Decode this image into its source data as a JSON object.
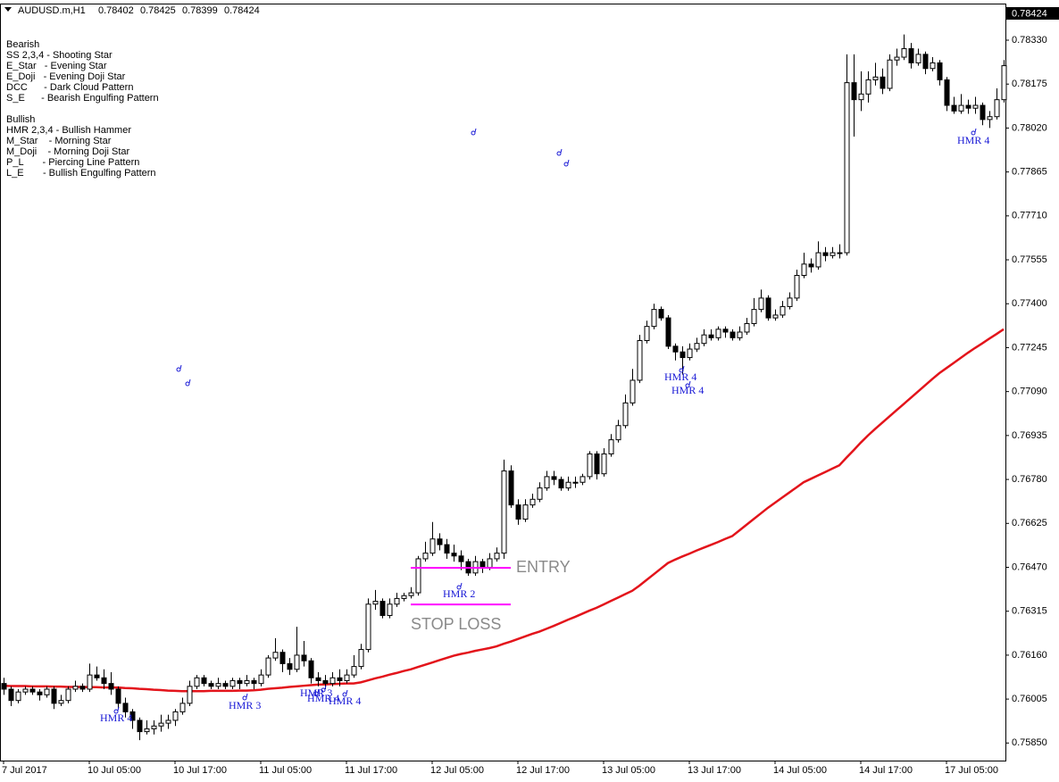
{
  "chart_data": {
    "type": "candlestick",
    "header": {
      "symbol": "AUDUSD.m,H1",
      "open": 0.78402,
      "high": 0.78425,
      "low": 0.78399,
      "close": 0.78424
    },
    "notes": [
      "Bearish",
      "SS 2,3,4 - Shooting Star",
      "E_Star   - Evening Star",
      "E_Doji   - Evening Doji Star",
      "DCC      - Dark Cloud Pattern",
      "S_E      - Bearish Engulfing Pattern",
      "Bullish",
      "HMR 2,3,4 - Bullish Hammer",
      "M_Star    - Morning Star",
      "M_Doji    - Morning Doji Star",
      "P_L       - Piercing Line Pattern",
      "L_E       - Bullish Engulfing Pattern"
    ],
    "annotations": [
      "HMR 4",
      "HMR 3",
      "HMR 3",
      "HMR 4",
      "HMR 4",
      "HMR 2",
      "HMR 4",
      "HMR 4",
      "HMR 4"
    ],
    "levels": [
      {
        "label": "ENTRY",
        "value": 0.76468,
        "color": "#ff00ff"
      },
      {
        "label": "STOP LOSS",
        "value": 0.76339,
        "color": "#ff00ff"
      }
    ],
    "up_color": "#ffffff",
    "down_color": "#000000",
    "categories": [
      "7 Jul 2017",
      null,
      null,
      null,
      null,
      null,
      null,
      null,
      null,
      null,
      null,
      null,
      "10 Jul 05:00",
      null,
      null,
      null,
      null,
      null,
      null,
      null,
      null,
      null,
      null,
      null,
      "10 Jul 17:00",
      null,
      null,
      null,
      null,
      null,
      null,
      null,
      null,
      null,
      null,
      null,
      "11 Jul 05:00",
      null,
      null,
      null,
      null,
      null,
      null,
      null,
      null,
      null,
      null,
      null,
      "11 Jul 17:00",
      null,
      null,
      null,
      null,
      null,
      null,
      null,
      null,
      null,
      null,
      null,
      "12 Jul 05:00",
      null,
      null,
      null,
      null,
      null,
      null,
      null,
      null,
      null,
      null,
      null,
      "12 Jul 17:00",
      null,
      null,
      null,
      null,
      null,
      null,
      null,
      null,
      null,
      null,
      null,
      "13 Jul 05:00",
      null,
      null,
      null,
      null,
      null,
      null,
      null,
      null,
      null,
      null,
      null,
      "13 Jul 17:00",
      null,
      null,
      null,
      null,
      null,
      null,
      null,
      null,
      null,
      null,
      null,
      "14 Jul 05:00",
      null,
      null,
      null,
      null,
      null,
      null,
      null,
      null,
      null,
      null,
      null,
      "14 Jul 17:00",
      null,
      null,
      null,
      null,
      null,
      null,
      null,
      null,
      null,
      null,
      null,
      "17 Jul 05:00",
      null,
      null,
      null,
      null,
      null,
      null,
      null,
      null
    ],
    "open": [
      0.7606,
      0.7604,
      0.76,
      0.7603,
      0.7604,
      0.7603,
      0.7602,
      0.7604,
      0.7599,
      0.76,
      0.7604,
      0.7605,
      0.7604,
      0.7609,
      0.7608,
      0.7606,
      0.7604,
      0.7599,
      0.7596,
      0.7593,
      0.7589,
      0.759,
      0.7591,
      0.7592,
      0.7593,
      0.7596,
      0.7599,
      0.7605,
      0.7608,
      0.7606,
      0.7605,
      0.7606,
      0.7605,
      0.7607,
      0.7606,
      0.7607,
      0.7606,
      0.7609,
      0.7615,
      0.7617,
      0.7613,
      0.7611,
      0.7616,
      0.7614,
      0.7608,
      0.7607,
      0.7606,
      0.7608,
      0.7607,
      0.7609,
      0.7612,
      0.7618,
      0.7634,
      0.7635,
      0.763,
      0.7634,
      0.7636,
      0.7637,
      0.7638,
      0.765,
      0.7652,
      0.7657,
      0.7655,
      0.7652,
      0.7651,
      0.7649,
      0.7645,
      0.7649,
      0.7647,
      0.765,
      0.7652,
      0.7681,
      0.7669,
      0.7664,
      0.7669,
      0.7671,
      0.7675,
      0.7679,
      0.7678,
      0.7675,
      0.7677,
      0.7677,
      0.7679,
      0.7687,
      0.768,
      0.7687,
      0.7692,
      0.7697,
      0.7705,
      0.7713,
      0.7727,
      0.7732,
      0.7738,
      0.7735,
      0.7725,
      0.7723,
      0.7721,
      0.7724,
      0.7726,
      0.7729,
      0.7728,
      0.7731,
      0.773,
      0.7728,
      0.773,
      0.7733,
      0.7738,
      0.7742,
      0.7735,
      0.7736,
      0.7739,
      0.7742,
      0.775,
      0.7754,
      0.7753,
      0.7758,
      0.7757,
      0.7758,
      0.7758,
      0.7818,
      0.7812,
      0.7814,
      0.7819,
      0.782,
      0.7816,
      0.7826,
      0.7827,
      0.783,
      0.7825,
      0.7828,
      0.7823,
      0.7825,
      0.7819,
      0.781,
      0.7808,
      0.781,
      0.7809,
      0.781,
      0.7805,
      0.7806,
      0.7812
    ],
    "high": [
      0.7608,
      0.7605,
      0.7604,
      0.7605,
      0.7605,
      0.7604,
      0.7605,
      0.7605,
      0.7602,
      0.7605,
      0.7607,
      0.7606,
      0.7613,
      0.7612,
      0.7611,
      0.761,
      0.7605,
      0.7601,
      0.7597,
      0.7594,
      0.7593,
      0.7593,
      0.7595,
      0.7595,
      0.7597,
      0.7601,
      0.7607,
      0.7609,
      0.7609,
      0.7607,
      0.7608,
      0.7607,
      0.7608,
      0.7608,
      0.7609,
      0.7608,
      0.7611,
      0.7616,
      0.7622,
      0.7618,
      0.7615,
      0.7626,
      0.7621,
      0.7615,
      0.761,
      0.7609,
      0.761,
      0.7611,
      0.7611,
      0.7616,
      0.762,
      0.7636,
      0.7639,
      0.7636,
      0.7636,
      0.7638,
      0.7638,
      0.764,
      0.7651,
      0.7656,
      0.7663,
      0.7659,
      0.7657,
      0.7655,
      0.7653,
      0.765,
      0.7651,
      0.765,
      0.7652,
      0.7654,
      0.7685,
      0.7683,
      0.7671,
      0.7671,
      0.7673,
      0.7677,
      0.7681,
      0.7681,
      0.7679,
      0.7679,
      0.7679,
      0.768,
      0.7688,
      0.7688,
      0.7689,
      0.7694,
      0.7699,
      0.7708,
      0.7717,
      0.7729,
      0.7734,
      0.774,
      0.7739,
      0.7736,
      0.7726,
      0.7725,
      0.7726,
      0.7728,
      0.7731,
      0.7731,
      0.7732,
      0.7732,
      0.7731,
      0.7732,
      0.7735,
      0.7742,
      0.7745,
      0.7743,
      0.7738,
      0.7741,
      0.7744,
      0.7752,
      0.7758,
      0.7756,
      0.7762,
      0.776,
      0.776,
      0.7761,
      0.7828,
      0.7828,
      0.7822,
      0.7822,
      0.7825,
      0.7823,
      0.7828,
      0.783,
      0.7835,
      0.7832,
      0.783,
      0.7829,
      0.7827,
      0.7826,
      0.782,
      0.7813,
      0.7814,
      0.7812,
      0.7813,
      0.7811,
      0.7808,
      0.7816,
      0.7826
    ],
    "low": [
      0.7602,
      0.7598,
      0.7599,
      0.7602,
      0.7602,
      0.76,
      0.7601,
      0.7597,
      0.7598,
      0.7599,
      0.7603,
      0.7603,
      0.7603,
      0.7607,
      0.7604,
      0.7602,
      0.7597,
      0.7594,
      0.759,
      0.7586,
      0.7588,
      0.7588,
      0.7589,
      0.759,
      0.7591,
      0.7595,
      0.7598,
      0.7604,
      0.7605,
      0.7604,
      0.7604,
      0.7604,
      0.7604,
      0.7604,
      0.7605,
      0.7604,
      0.7605,
      0.7608,
      0.7614,
      0.761,
      0.7609,
      0.761,
      0.7612,
      0.7606,
      0.7605,
      0.7604,
      0.7605,
      0.7605,
      0.7606,
      0.7608,
      0.7611,
      0.7617,
      0.7632,
      0.7629,
      0.7629,
      0.7633,
      0.7635,
      0.7636,
      0.7637,
      0.7649,
      0.7651,
      0.7653,
      0.765,
      0.7649,
      0.7646,
      0.7644,
      0.7644,
      0.7645,
      0.7646,
      0.7649,
      0.765,
      0.7668,
      0.7662,
      0.7663,
      0.7668,
      0.767,
      0.7674,
      0.7676,
      0.7674,
      0.7674,
      0.7675,
      0.7676,
      0.7678,
      0.7678,
      0.7679,
      0.7686,
      0.7691,
      0.7696,
      0.7704,
      0.7712,
      0.7726,
      0.7731,
      0.7734,
      0.7724,
      0.772,
      0.7715,
      0.772,
      0.7723,
      0.7725,
      0.7727,
      0.7727,
      0.7728,
      0.7727,
      0.7727,
      0.7729,
      0.7732,
      0.7737,
      0.7734,
      0.7734,
      0.7735,
      0.7738,
      0.7741,
      0.7749,
      0.7751,
      0.7752,
      0.7755,
      0.7756,
      0.7756,
      0.7757,
      0.7799,
      0.7808,
      0.7811,
      0.7817,
      0.7814,
      0.7815,
      0.7824,
      0.7826,
      0.7823,
      0.7824,
      0.7821,
      0.7822,
      0.7817,
      0.7808,
      0.7807,
      0.7807,
      0.7807,
      0.7807,
      0.7803,
      0.7802,
      0.7805,
      0.7811
    ],
    "close": [
      0.7604,
      0.76,
      0.7603,
      0.7604,
      0.7603,
      0.7602,
      0.7604,
      0.7599,
      0.76,
      0.7604,
      0.7605,
      0.7604,
      0.7609,
      0.7608,
      0.7606,
      0.7604,
      0.7599,
      0.7596,
      0.7593,
      0.7589,
      0.759,
      0.7591,
      0.7592,
      0.7593,
      0.7596,
      0.7599,
      0.7605,
      0.7608,
      0.7606,
      0.7605,
      0.7606,
      0.7605,
      0.7607,
      0.7606,
      0.7607,
      0.7606,
      0.7609,
      0.7615,
      0.7617,
      0.7613,
      0.7611,
      0.7616,
      0.7614,
      0.7608,
      0.7607,
      0.7606,
      0.7608,
      0.7607,
      0.7609,
      0.7612,
      0.7618,
      0.7634,
      0.7635,
      0.763,
      0.7634,
      0.7636,
      0.7637,
      0.7638,
      0.765,
      0.7652,
      0.7657,
      0.7655,
      0.7652,
      0.7651,
      0.7649,
      0.7645,
      0.7649,
      0.7647,
      0.765,
      0.7652,
      0.7681,
      0.7669,
      0.7664,
      0.7669,
      0.7671,
      0.7675,
      0.7679,
      0.7678,
      0.7675,
      0.7677,
      0.7677,
      0.7679,
      0.7687,
      0.768,
      0.7687,
      0.7692,
      0.7697,
      0.7705,
      0.7713,
      0.7727,
      0.7732,
      0.7738,
      0.7735,
      0.7725,
      0.7723,
      0.7721,
      0.7724,
      0.7726,
      0.7729,
      0.7728,
      0.7731,
      0.773,
      0.7728,
      0.773,
      0.7733,
      0.7738,
      0.7742,
      0.7735,
      0.7736,
      0.7739,
      0.7742,
      0.775,
      0.7754,
      0.7753,
      0.7758,
      0.7757,
      0.7758,
      0.7758,
      0.7818,
      0.7812,
      0.7814,
      0.7819,
      0.782,
      0.7816,
      0.7826,
      0.7827,
      0.783,
      0.7825,
      0.7828,
      0.7823,
      0.7825,
      0.7819,
      0.781,
      0.7808,
      0.781,
      0.7809,
      0.781,
      0.7805,
      0.7806,
      0.7812,
      0.7824
    ],
    "moving_average": {
      "color": "#e3141b",
      "values": [
        0.76052,
        0.76051,
        0.76051,
        0.76051,
        0.7605,
        0.7605,
        0.7605,
        0.76049,
        0.76049,
        0.76048,
        0.76048,
        0.76048,
        0.76047,
        0.76047,
        0.76046,
        0.76046,
        0.76046,
        0.76044,
        0.76043,
        0.76041,
        0.7604,
        0.76038,
        0.76037,
        0.76035,
        0.76034,
        0.76033,
        0.76033,
        0.76033,
        0.76033,
        0.76034,
        0.76034,
        0.76034,
        0.76034,
        0.76035,
        0.76035,
        0.76036,
        0.76038,
        0.76041,
        0.76043,
        0.76045,
        0.76048,
        0.7605,
        0.76052,
        0.76054,
        0.76056,
        0.76057,
        0.76058,
        0.76059,
        0.7606,
        0.7606,
        0.76064,
        0.76071,
        0.76078,
        0.76084,
        0.76091,
        0.76097,
        0.76104,
        0.7611,
        0.76118,
        0.76126,
        0.76134,
        0.76142,
        0.7615,
        0.76158,
        0.76164,
        0.76169,
        0.76175,
        0.7618,
        0.76185,
        0.76191,
        0.762,
        0.76208,
        0.76217,
        0.76226,
        0.76235,
        0.76243,
        0.76253,
        0.76263,
        0.76274,
        0.76285,
        0.76295,
        0.76306,
        0.76317,
        0.76327,
        0.76339,
        0.76351,
        0.76363,
        0.76375,
        0.76387,
        0.76405,
        0.76425,
        0.76445,
        0.76465,
        0.76485,
        0.76497,
        0.76508,
        0.76518,
        0.76529,
        0.76539,
        0.76549,
        0.76559,
        0.7657,
        0.7658,
        0.766,
        0.7662,
        0.7664,
        0.7666,
        0.7668,
        0.76698,
        0.76716,
        0.76734,
        0.76752,
        0.7677,
        0.76782,
        0.76794,
        0.76806,
        0.76818,
        0.7683,
        0.76857,
        0.76883,
        0.7691,
        0.76935,
        0.76958,
        0.7698,
        0.77002,
        0.77024,
        0.77046,
        0.77068,
        0.7709,
        0.77112,
        0.77134,
        0.77155,
        0.77173,
        0.77191,
        0.77209,
        0.77227,
        0.77244,
        0.7726,
        0.77277,
        0.77293,
        0.7731
      ]
    },
    "ylim": [
      0.75788,
      0.78456
    ],
    "yticks": [
      {
        "value": 0.7585,
        "label": "0.75850"
      },
      0.76005,
      {
        "value": 0.7616,
        "label": "0.76160"
      },
      0.76315,
      {
        "value": 0.7647,
        "label": "0.76470"
      },
      0.76625,
      {
        "value": 0.7678,
        "label": "0.76780"
      },
      0.76935,
      {
        "value": 0.7709,
        "label": "0.77090"
      },
      0.77245,
      {
        "value": 0.774,
        "label": "0.77400"
      },
      0.77555,
      {
        "value": 0.7771,
        "label": "0.77710"
      },
      0.77865,
      {
        "value": 0.7802,
        "label": "0.78020"
      },
      0.78175,
      {
        "value": 0.7833,
        "label": "0.78330"
      }
    ],
    "grid": false
  }
}
